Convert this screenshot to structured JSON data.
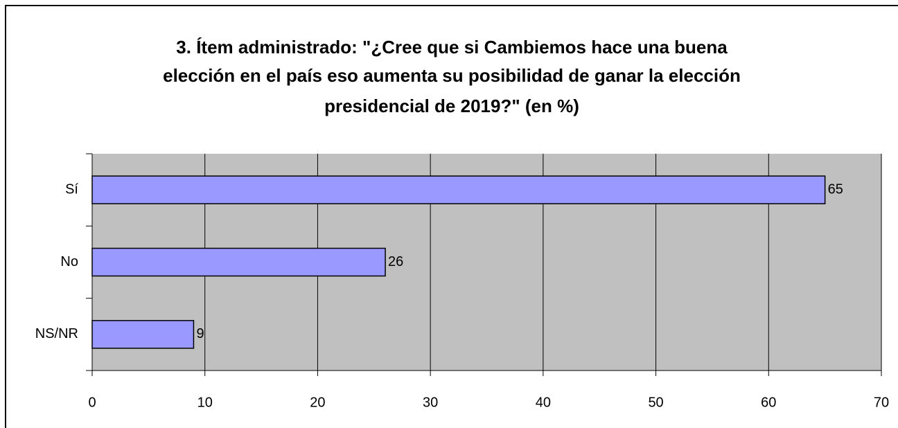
{
  "chart_data": {
    "type": "barh",
    "title": [
      "3. Ítem administrado: \"¿Cree que si Cambiemos hace una buena",
      "elección en el país eso aumenta su posibilidad de ganar la elección",
      "presidencial de 2019?\" (en %)"
    ],
    "categories": [
      "Sí",
      "No",
      "NS/NR"
    ],
    "values": [
      65,
      26,
      9
    ],
    "color": "#9999ff",
    "xlim": [
      0,
      70
    ],
    "xticks": [
      0,
      10,
      20,
      30,
      40,
      50,
      60,
      70
    ],
    "grid": true
  }
}
